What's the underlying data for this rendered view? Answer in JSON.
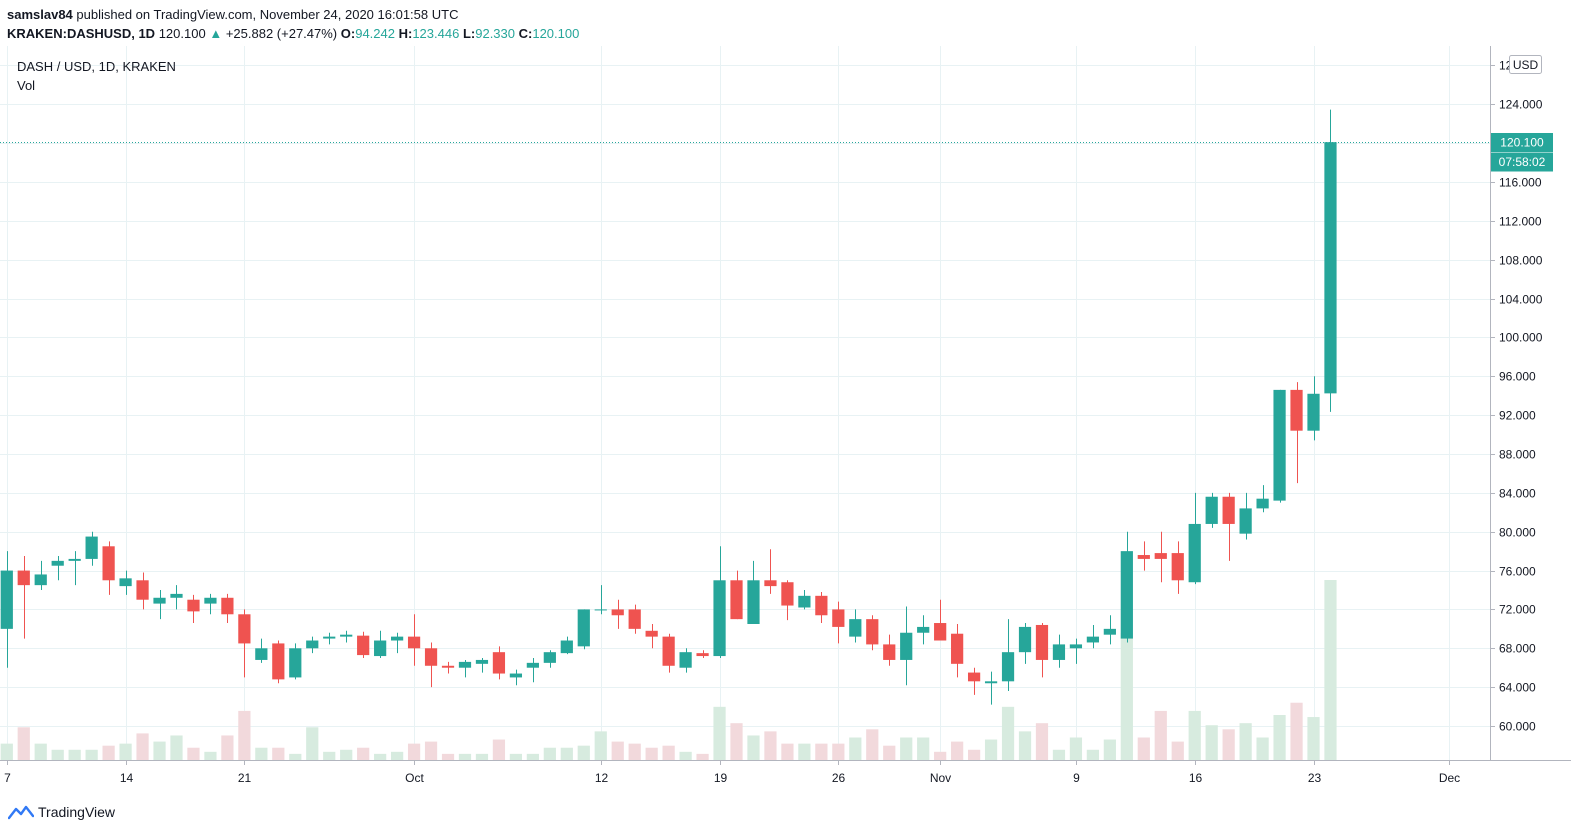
{
  "header": {
    "author": "samslav84",
    "published_text": "published on TradingView.com, November 24, 2020 16:01:58 UTC",
    "symbol": "KRAKEN:DASHUSD, 1D",
    "last": "120.100",
    "change_arrow": "▲",
    "change": "+25.882 (+27.47%)",
    "open_label": "O:",
    "open": "94.242",
    "high_label": "H:",
    "high": "123.446",
    "low_label": "L:",
    "low": "92.330",
    "close_label": "C:",
    "close": "120.100"
  },
  "footer": {
    "brand": "TradingView",
    "brand_icon": "tradingview-logo-icon"
  },
  "colors": {
    "up": "#26a69a",
    "down": "#ef5350",
    "vol_up": "#d7ebdf",
    "vol_down": "#f2d9dc",
    "grid": "#e8f2f4",
    "axis_text": "#131722"
  },
  "chart_data": {
    "type": "candlestick",
    "title": "DASH / USD, 1D, KRAKEN",
    "volume_label": "Vol",
    "currency_badge": "USD",
    "y_ticks": [
      "60.000",
      "64.000",
      "68.000",
      "72.000",
      "76.000",
      "80.000",
      "84.000",
      "88.000",
      "92.000",
      "96.000",
      "100.000",
      "104.000",
      "108.000",
      "112.000",
      "116.000",
      "120.000",
      "124.000",
      "128.000"
    ],
    "ylim": [
      56.5,
      130
    ],
    "last_price_label": "120.100",
    "countdown_label": "07:58:02",
    "x_ticks": [
      {
        "label": "7",
        "index": 1
      },
      {
        "label": "14",
        "index": 8
      },
      {
        "label": "21",
        "index": 15
      },
      {
        "label": "Oct",
        "index": 25
      },
      {
        "label": "12",
        "index": 36
      },
      {
        "label": "19",
        "index": 43
      },
      {
        "label": "26",
        "index": 50
      },
      {
        "label": "Nov",
        "index": 56
      },
      {
        "label": "9",
        "index": 64
      },
      {
        "label": "16",
        "index": 71
      },
      {
        "label": "23",
        "index": 78
      },
      {
        "label": "Dec",
        "index": 86
      }
    ],
    "x_range": [
      0.6,
      88.4
    ],
    "candles": [
      {
        "o": 68,
        "h": 72,
        "l": 67,
        "c": 70,
        "v": 3
      },
      {
        "o": 70,
        "h": 78,
        "l": 66,
        "c": 76,
        "v": 4
      },
      {
        "o": 76,
        "h": 77.5,
        "l": 69,
        "c": 74.5,
        "v": 8
      },
      {
        "o": 74.5,
        "h": 77,
        "l": 74,
        "c": 75.6,
        "v": 4
      },
      {
        "o": 76.5,
        "h": 77.5,
        "l": 75,
        "c": 77,
        "v": 2.5
      },
      {
        "o": 77,
        "h": 78,
        "l": 74.5,
        "c": 77.2,
        "v": 2.5
      },
      {
        "o": 77.2,
        "h": 80,
        "l": 76.5,
        "c": 79.5,
        "v": 2.5
      },
      {
        "o": 78.5,
        "h": 79,
        "l": 73.5,
        "c": 75,
        "v": 3.5
      },
      {
        "o": 74.4,
        "h": 76,
        "l": 73.5,
        "c": 75.2,
        "v": 4
      },
      {
        "o": 75,
        "h": 75.8,
        "l": 72,
        "c": 73,
        "v": 6.5
      },
      {
        "o": 72.6,
        "h": 74,
        "l": 71,
        "c": 73.2,
        "v": 4.5
      },
      {
        "o": 73.2,
        "h": 74.5,
        "l": 72,
        "c": 73.6,
        "v": 6
      },
      {
        "o": 73,
        "h": 73.5,
        "l": 70.6,
        "c": 71.8,
        "v": 3
      },
      {
        "o": 72.6,
        "h": 73.6,
        "l": 71.5,
        "c": 73.2,
        "v": 2
      },
      {
        "o": 73.2,
        "h": 73.6,
        "l": 70.6,
        "c": 71.5,
        "v": 6
      },
      {
        "o": 71.5,
        "h": 72,
        "l": 65,
        "c": 68.5,
        "v": 12
      },
      {
        "o": 66.8,
        "h": 69,
        "l": 66.5,
        "c": 68,
        "v": 3
      },
      {
        "o": 68.5,
        "h": 68.8,
        "l": 64.4,
        "c": 64.8,
        "v": 3
      },
      {
        "o": 65,
        "h": 68.5,
        "l": 64.8,
        "c": 68,
        "v": 1.5
      },
      {
        "o": 68,
        "h": 69.2,
        "l": 67.5,
        "c": 68.8,
        "v": 8
      },
      {
        "o": 69,
        "h": 69.6,
        "l": 68.4,
        "c": 69.2,
        "v": 2
      },
      {
        "o": 69.2,
        "h": 69.8,
        "l": 68.6,
        "c": 69.4,
        "v": 2.5
      },
      {
        "o": 69.3,
        "h": 69.7,
        "l": 67,
        "c": 67.3,
        "v": 3
      },
      {
        "o": 67.2,
        "h": 69.8,
        "l": 67,
        "c": 68.8,
        "v": 1.5
      },
      {
        "o": 68.8,
        "h": 69.6,
        "l": 67.5,
        "c": 69.2,
        "v": 2
      },
      {
        "o": 69.2,
        "h": 71.5,
        "l": 66.2,
        "c": 68,
        "v": 4
      },
      {
        "o": 68,
        "h": 68.6,
        "l": 64,
        "c": 66.2,
        "v": 4.5
      },
      {
        "o": 66.2,
        "h": 66.6,
        "l": 65.4,
        "c": 66,
        "v": 1.5
      },
      {
        "o": 66,
        "h": 66.8,
        "l": 65,
        "c": 66.6,
        "v": 1.5
      },
      {
        "o": 66.4,
        "h": 67,
        "l": 65.5,
        "c": 66.8,
        "v": 1.5
      },
      {
        "o": 67.6,
        "h": 68.2,
        "l": 64.8,
        "c": 65.4,
        "v": 5
      },
      {
        "o": 65,
        "h": 65.8,
        "l": 64.2,
        "c": 65.4,
        "v": 1.5
      },
      {
        "o": 66,
        "h": 67,
        "l": 64.5,
        "c": 66.5,
        "v": 1.5
      },
      {
        "o": 66.5,
        "h": 67.8,
        "l": 66,
        "c": 67.6,
        "v": 3
      },
      {
        "o": 67.5,
        "h": 69.2,
        "l": 67.4,
        "c": 68.8,
        "v": 3
      },
      {
        "o": 68.2,
        "h": 72,
        "l": 67.9,
        "c": 72,
        "v": 3.5
      },
      {
        "o": 72,
        "h": 74.5,
        "l": 71.5,
        "c": 72,
        "v": 7
      },
      {
        "o": 72,
        "h": 73,
        "l": 70,
        "c": 71.4,
        "v": 4.5
      },
      {
        "o": 72,
        "h": 72.5,
        "l": 69.5,
        "c": 70,
        "v": 4
      },
      {
        "o": 69.8,
        "h": 70.5,
        "l": 68,
        "c": 69.2,
        "v": 3
      },
      {
        "o": 69.2,
        "h": 69.5,
        "l": 65.5,
        "c": 66.2,
        "v": 3.5
      },
      {
        "o": 66,
        "h": 68,
        "l": 65.5,
        "c": 67.6,
        "v": 2
      },
      {
        "o": 67.5,
        "h": 67.8,
        "l": 67,
        "c": 67.2,
        "v": 1.5
      },
      {
        "o": 67.2,
        "h": 78.5,
        "l": 67,
        "c": 75,
        "v": 13
      },
      {
        "o": 75,
        "h": 76,
        "l": 71,
        "c": 71,
        "v": 9
      },
      {
        "o": 70.5,
        "h": 77,
        "l": 70.5,
        "c": 75,
        "v": 6
      },
      {
        "o": 75,
        "h": 78.2,
        "l": 73.6,
        "c": 74.4,
        "v": 7
      },
      {
        "o": 74.8,
        "h": 75,
        "l": 70.9,
        "c": 72.4,
        "v": 4
      },
      {
        "o": 72.2,
        "h": 74,
        "l": 72,
        "c": 73.4,
        "v": 4
      },
      {
        "o": 73.4,
        "h": 73.8,
        "l": 70.6,
        "c": 71.4,
        "v": 4
      },
      {
        "o": 72,
        "h": 72.8,
        "l": 68.5,
        "c": 70.2,
        "v": 4
      },
      {
        "o": 69.2,
        "h": 72,
        "l": 68.6,
        "c": 71,
        "v": 5.5
      },
      {
        "o": 71,
        "h": 71.4,
        "l": 67.8,
        "c": 68.4,
        "v": 7.5
      },
      {
        "o": 68.4,
        "h": 69.4,
        "l": 66.2,
        "c": 66.8,
        "v": 3.5
      },
      {
        "o": 66.8,
        "h": 72.3,
        "l": 64.2,
        "c": 69.6,
        "v": 5.5
      },
      {
        "o": 69.6,
        "h": 71.4,
        "l": 68.4,
        "c": 70.2,
        "v": 5.5
      },
      {
        "o": 70.6,
        "h": 73,
        "l": 68.8,
        "c": 68.8,
        "v": 2
      },
      {
        "o": 69.5,
        "h": 70.5,
        "l": 65,
        "c": 66.4,
        "v": 4.5
      },
      {
        "o": 65.5,
        "h": 66,
        "l": 63.2,
        "c": 64.6,
        "v": 2.5
      },
      {
        "o": 64.4,
        "h": 65.6,
        "l": 62.2,
        "c": 64.6,
        "v": 5
      },
      {
        "o": 64.6,
        "h": 71,
        "l": 63.6,
        "c": 67.6,
        "v": 13
      },
      {
        "o": 67.6,
        "h": 70.6,
        "l": 66.4,
        "c": 70.2,
        "v": 7
      },
      {
        "o": 70.4,
        "h": 70.6,
        "l": 65,
        "c": 66.8,
        "v": 9
      },
      {
        "o": 66.8,
        "h": 69.4,
        "l": 66,
        "c": 68.4,
        "v": 2.5
      },
      {
        "o": 68,
        "h": 69,
        "l": 66.4,
        "c": 68.4,
        "v": 5.5
      },
      {
        "o": 68.6,
        "h": 70.4,
        "l": 68,
        "c": 69.2,
        "v": 2.5
      },
      {
        "o": 69.4,
        "h": 71.4,
        "l": 68.4,
        "c": 70,
        "v": 5
      },
      {
        "o": 69,
        "h": 80,
        "l": 68.6,
        "c": 78,
        "v": 31
      },
      {
        "o": 77.6,
        "h": 79,
        "l": 76,
        "c": 77.2,
        "v": 5.5
      },
      {
        "o": 77.8,
        "h": 80,
        "l": 74.8,
        "c": 77.2,
        "v": 12
      },
      {
        "o": 77.8,
        "h": 79,
        "l": 73.6,
        "c": 75,
        "v": 4.5
      },
      {
        "o": 74.8,
        "h": 84,
        "l": 74.6,
        "c": 80.8,
        "v": 12
      },
      {
        "o": 80.8,
        "h": 84,
        "l": 80.4,
        "c": 83.6,
        "v": 8.5
      },
      {
        "o": 83.6,
        "h": 84,
        "l": 77,
        "c": 80.8,
        "v": 7.5
      },
      {
        "o": 79.8,
        "h": 84,
        "l": 79.2,
        "c": 82.4,
        "v": 9
      },
      {
        "o": 82.4,
        "h": 84.8,
        "l": 82,
        "c": 83.4,
        "v": 5.5
      },
      {
        "o": 83.2,
        "h": 94.6,
        "l": 83,
        "c": 94.6,
        "v": 11
      },
      {
        "o": 94.6,
        "h": 95.4,
        "l": 85,
        "c": 90.4,
        "v": 14
      },
      {
        "o": 90.4,
        "h": 96,
        "l": 89.4,
        "c": 94.2,
        "v": 10.5
      },
      {
        "o": 94.242,
        "h": 123.446,
        "l": 92.33,
        "c": 120.1,
        "v": 44
      }
    ]
  }
}
